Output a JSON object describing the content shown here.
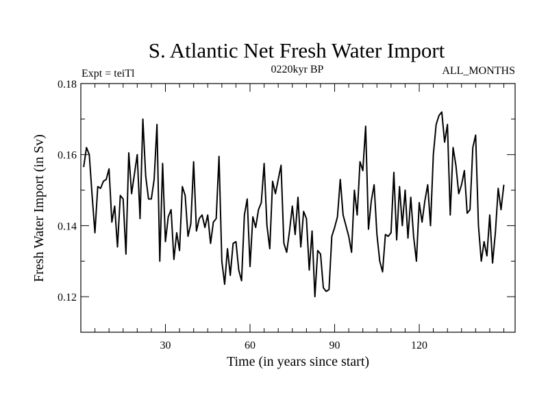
{
  "chart_data": {
    "type": "line",
    "title": "S. Atlantic Net Fresh Water Import",
    "subtitle_left": "Expt = teiTl",
    "subtitle_center": "0220kyr BP",
    "subtitle_right": "ALL_MONTHS",
    "xlabel": "Time (in years since start)",
    "ylabel": "Fresh Water Import (in Sv)",
    "xlim": [
      0,
      154
    ],
    "ylim": [
      0.11,
      0.18
    ],
    "x_ticks": [
      30,
      60,
      90,
      120
    ],
    "x_tick_labels": [
      "30",
      "60",
      "90",
      "120"
    ],
    "y_ticks": [
      0.12,
      0.14,
      0.16,
      0.18
    ],
    "y_tick_labels": [
      "0.12",
      "0.14",
      "0.16",
      "0.18"
    ],
    "series": [
      {
        "name": "net fresh water import",
        "values": [
          0.1565,
          0.162,
          0.16,
          0.1485,
          0.138,
          0.151,
          0.1505,
          0.1525,
          0.153,
          0.156,
          0.141,
          0.1455,
          0.134,
          0.1485,
          0.1475,
          0.132,
          0.1605,
          0.149,
          0.1545,
          0.16,
          0.142,
          0.17,
          0.154,
          0.1475,
          0.1475,
          0.153,
          0.1685,
          0.13,
          0.1575,
          0.1355,
          0.1425,
          0.1445,
          0.1305,
          0.138,
          0.133,
          0.151,
          0.1485,
          0.137,
          0.1405,
          0.158,
          0.1385,
          0.142,
          0.143,
          0.1395,
          0.143,
          0.135,
          0.141,
          0.142,
          0.1595,
          0.13,
          0.1235,
          0.1335,
          0.126,
          0.135,
          0.1355,
          0.1275,
          0.1245,
          0.143,
          0.1475,
          0.1285,
          0.1425,
          0.1395,
          0.1445,
          0.1465,
          0.1575,
          0.14,
          0.1335,
          0.1525,
          0.149,
          0.153,
          0.157,
          0.135,
          0.1325,
          0.1385,
          0.1455,
          0.1375,
          0.148,
          0.134,
          0.144,
          0.142,
          0.1275,
          0.1385,
          0.12,
          0.133,
          0.132,
          0.1225,
          0.1215,
          0.122,
          0.137,
          0.1395,
          0.1425,
          0.153,
          0.143,
          0.14,
          0.137,
          0.1325,
          0.15,
          0.143,
          0.158,
          0.1555,
          0.168,
          0.139,
          0.147,
          0.1515,
          0.1375,
          0.13,
          0.127,
          0.1375,
          0.137,
          0.138,
          0.155,
          0.136,
          0.151,
          0.14,
          0.15,
          0.1365,
          0.148,
          0.137,
          0.13,
          0.1465,
          0.141,
          0.147,
          0.1515,
          0.14,
          0.16,
          0.1685,
          0.171,
          0.172,
          0.1635,
          0.1685,
          0.143,
          0.162,
          0.157,
          0.149,
          0.1515,
          0.1555,
          0.1435,
          0.1445,
          0.162,
          0.1655,
          0.14,
          0.13,
          0.1355,
          0.1315,
          0.143,
          0.1295,
          0.138,
          0.1505,
          0.1445,
          0.1515
        ]
      }
    ]
  }
}
